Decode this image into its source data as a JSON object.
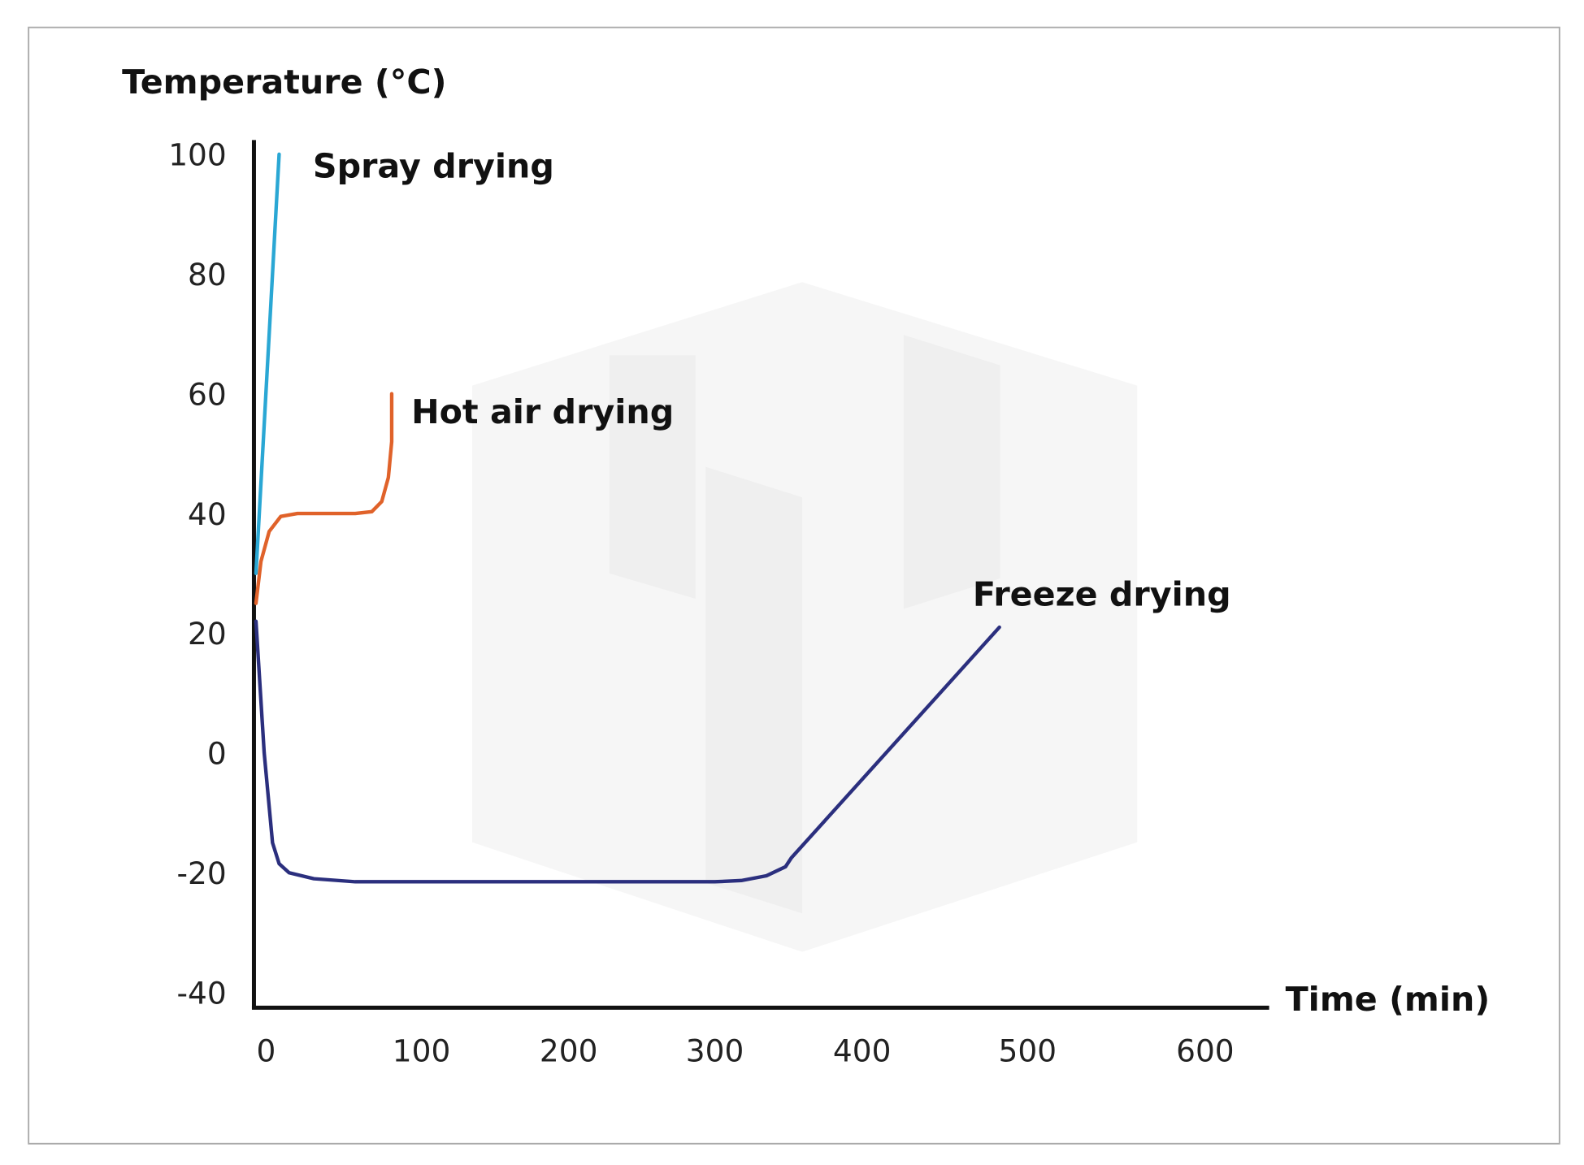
{
  "chart_data": {
    "type": "line",
    "title": "",
    "xlabel": "Time (min)",
    "ylabel": "Temperature (°C)",
    "xlim": [
      0,
      600
    ],
    "ylim": [
      -40,
      100
    ],
    "x_ticks": [
      0,
      100,
      200,
      300,
      400,
      500,
      600
    ],
    "y_ticks": [
      100,
      80,
      60,
      40,
      20,
      0,
      -20,
      -40
    ],
    "grid": false,
    "legend": "none (series labelled directly)",
    "series": [
      {
        "name": "Spray drying",
        "color": "#2aa7d4",
        "x": [
          0,
          14
        ],
        "y": [
          30,
          100
        ]
      },
      {
        "name": "Hot air drying",
        "color": "#e0622a",
        "x": [
          0,
          3,
          8,
          15,
          25,
          60,
          70,
          76,
          80,
          82,
          82
        ],
        "y": [
          25,
          32,
          37,
          39.5,
          40,
          40,
          40.3,
          42,
          46,
          52,
          60
        ]
      },
      {
        "name": "Freeze drying",
        "color": "#2b2f7e",
        "x": [
          0,
          5,
          10,
          14,
          20,
          35,
          60,
          150,
          300,
          318,
          335,
          348,
          352,
          483
        ],
        "y": [
          22,
          0,
          -15,
          -18.5,
          -20,
          -21,
          -21.5,
          -21.5,
          -21.5,
          -21.3,
          -20.5,
          -19,
          -17.5,
          21
        ]
      }
    ]
  }
}
